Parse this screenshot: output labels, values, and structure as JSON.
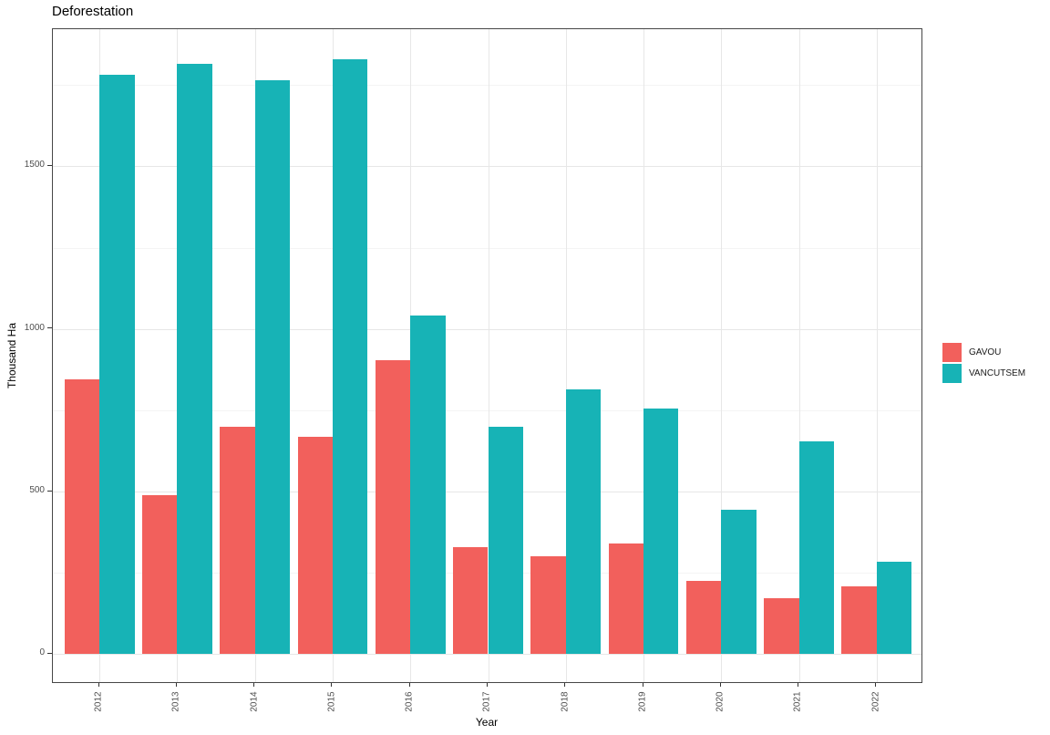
{
  "chart_data": {
    "type": "bar",
    "title": "Deforestation",
    "xlabel": "Year",
    "ylabel": "Thousand Ha",
    "categories": [
      "2012",
      "2013",
      "2014",
      "2015",
      "2016",
      "2017",
      "2018",
      "2019",
      "2020",
      "2021",
      "2022"
    ],
    "series": [
      {
        "name": "GAVOU",
        "color": "#F2605C",
        "values": [
          845,
          490,
          700,
          668,
          905,
          330,
          300,
          340,
          225,
          173,
          208
        ]
      },
      {
        "name": "VANCUTSEM",
        "color": "#17B3B6",
        "values": [
          1780,
          1815,
          1765,
          1830,
          1040,
          700,
          815,
          755,
          445,
          655,
          285
        ]
      }
    ],
    "yticks": [
      0,
      500,
      1000,
      1500
    ],
    "yminor": [
      250,
      750,
      1250,
      1750
    ],
    "ylim": [
      -91.5,
      1921.5
    ],
    "bar_grouping": "dodge",
    "grid": "major-and-minor",
    "legend_position": "right"
  }
}
